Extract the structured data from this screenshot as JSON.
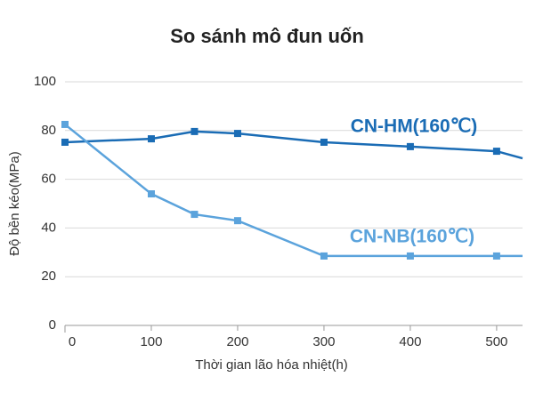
{
  "chart_data": {
    "type": "line",
    "title": "So sánh mô đun uốn",
    "x_label": "Thời gian lão hóa nhiệt(h)",
    "y_label": "Độ bền kéo(MPa)",
    "xlim": [
      0,
      530
    ],
    "xticks": [
      0,
      100,
      200,
      300,
      400,
      500
    ],
    "ylim": [
      0,
      100
    ],
    "yticks": [
      0,
      20,
      40,
      60,
      80,
      100
    ],
    "grid": true,
    "series": [
      {
        "name": "CN-HM(160℃)",
        "color": "#1a6cb5",
        "x": [
          0,
          100,
          150,
          200,
          300,
          400,
          500,
          530
        ],
        "values": [
          75.2,
          76.6,
          79.6,
          78.8,
          75.2,
          73.4,
          71.5,
          68.6
        ]
      },
      {
        "name": "CN-NB(160℃)",
        "color": "#5ba3dc",
        "x": [
          0,
          100,
          150,
          200,
          300,
          400,
          500,
          530
        ],
        "values": [
          82.5,
          54,
          45.6,
          43,
          28.5,
          28.5,
          28.5,
          28.5
        ]
      }
    ]
  }
}
